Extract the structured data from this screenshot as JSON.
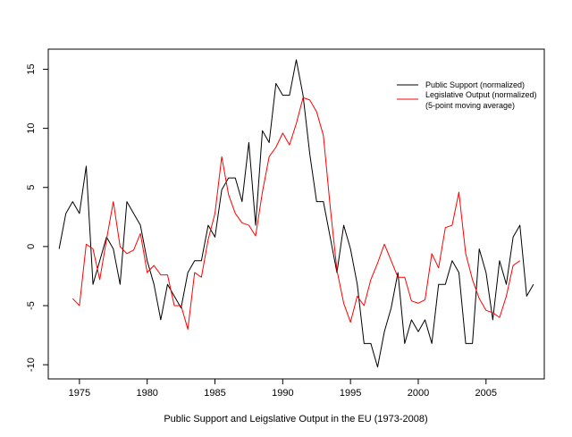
{
  "chart_data": {
    "type": "line",
    "title": "",
    "xlabel": "Public Support and  Leigslative Output in the EU (1973-2008)",
    "ylabel": "",
    "xlim": [
      1972.7,
      2009.3
    ],
    "ylim": [
      -11.2,
      16.7
    ],
    "x_ticks": [
      1975,
      1980,
      1985,
      1990,
      1995,
      2000,
      2005
    ],
    "y_ticks": [
      -10,
      -5,
      0,
      5,
      10,
      15
    ],
    "grid": false,
    "legend_position": "top-right",
    "series": [
      {
        "name": "Public Support (normalized)",
        "color": "#000000",
        "x": [
          1973.5,
          1974,
          1974.5,
          1975,
          1975.5,
          1976,
          1976.5,
          1977,
          1977.5,
          1978,
          1978.5,
          1979,
          1979.5,
          1980,
          1980.5,
          1981,
          1981.5,
          1982,
          1982.5,
          1983,
          1983.5,
          1984,
          1984.5,
          1985,
          1985.5,
          1986,
          1986.5,
          1987,
          1987.5,
          1988,
          1988.5,
          1989,
          1989.5,
          1990,
          1990.5,
          1991,
          1991.5,
          1992,
          1992.5,
          1993,
          1993.5,
          1994,
          1994.5,
          1995,
          1995.5,
          1996,
          1996.5,
          1997,
          1997.5,
          1998,
          1998.5,
          1999,
          1999.5,
          2000,
          2000.5,
          2001,
          2001.5,
          2002,
          2002.5,
          2003,
          2003.5,
          2004,
          2004.5,
          2005,
          2005.5,
          2006,
          2006.5,
          2007,
          2007.5,
          2008,
          2008.5
        ],
        "values": [
          -0.2,
          2.8,
          3.8,
          2.8,
          6.8,
          -3.2,
          -1.2,
          0.8,
          -0.2,
          -3.2,
          3.8,
          2.8,
          1.8,
          -1.2,
          -3.2,
          -6.2,
          -3.2,
          -4.2,
          -5.2,
          -2.2,
          -1.2,
          -1.2,
          1.8,
          0.8,
          4.8,
          5.8,
          5.8,
          3.8,
          8.8,
          1.8,
          9.8,
          8.8,
          13.8,
          12.8,
          12.8,
          15.8,
          12.8,
          7.8,
          3.8,
          3.8,
          0.8,
          -2.2,
          1.8,
          -0.2,
          -3.2,
          -8.2,
          -8.2,
          -10.2,
          -7.2,
          -5.2,
          -2.2,
          -8.2,
          -6.2,
          -7.2,
          -6.2,
          -8.2,
          -3.2,
          -3.2,
          -1.2,
          -2.2,
          -8.2,
          -8.2,
          -0.2,
          -2.2,
          -6.2,
          -1.2,
          -3.2,
          0.8,
          1.8,
          -4.2,
          -3.2
        ]
      },
      {
        "name": "Legislative Output (normalized)",
        "name_line2": "(5-point moving average)",
        "color": "#ff0000",
        "x": [
          1974.5,
          1975,
          1975.5,
          1976,
          1976.5,
          1977,
          1977.5,
          1978,
          1978.5,
          1979,
          1979.5,
          1980,
          1980.5,
          1981,
          1981.5,
          1982,
          1982.5,
          1983,
          1983.5,
          1984,
          1984.5,
          1985,
          1985.5,
          1986,
          1986.5,
          1987,
          1987.5,
          1988,
          1988.5,
          1989,
          1989.5,
          1990,
          1990.5,
          1991,
          1991.5,
          1992,
          1992.5,
          1993,
          1993.5,
          1994,
          1994.5,
          1995,
          1995.5,
          1996,
          1996.5,
          1997,
          1997.5,
          1998,
          1998.5,
          1999,
          1999.5,
          2000,
          2000.5,
          2001,
          2001.5,
          2002,
          2002.5,
          2003,
          2003.5,
          2004,
          2004.5,
          2005,
          2005.5,
          2006,
          2006.5,
          2007,
          2007.5
        ],
        "values": [
          -4.4,
          -5,
          0.2,
          -0.2,
          -2.8,
          0.6,
          3.8,
          0,
          -0.6,
          -0.3,
          1.1,
          -2.2,
          -1.6,
          -2.4,
          -2.4,
          -5,
          -5,
          -7,
          -2.2,
          -2.6,
          0.6,
          2.8,
          7.6,
          4.4,
          2.8,
          2,
          1.8,
          0.9,
          4.6,
          7.6,
          8.4,
          9.6,
          8.6,
          10.4,
          12.6,
          12.4,
          11.4,
          9.4,
          3.4,
          -2,
          -4.8,
          -6.4,
          -4.2,
          -5,
          -2.8,
          -1.4,
          0.2,
          -1.2,
          -2.6,
          -2.6,
          -4.6,
          -4.8,
          -4.5,
          -0.6,
          -1.8,
          1.6,
          1.8,
          4.6,
          -0.6,
          -2.8,
          -4.4,
          -5.4,
          -5.6,
          -6,
          -4.2,
          -1.6,
          -1.2
        ]
      }
    ]
  }
}
